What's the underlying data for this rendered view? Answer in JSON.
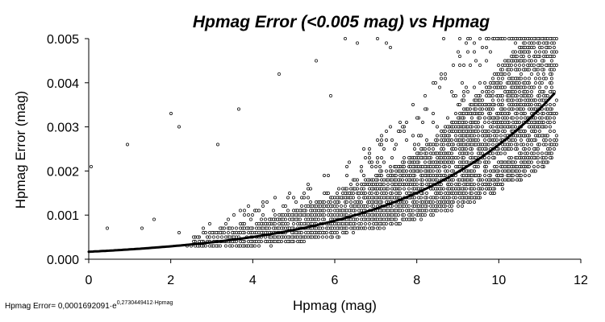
{
  "chart_data": {
    "type": "scatter",
    "title": "Hpmag Error (<0.005 mag) vs Hpmag",
    "xlabel": "Hpmag (mag)",
    "ylabel": "Hpmag Error (mag)",
    "xlim": [
      0,
      12
    ],
    "ylim": [
      0,
      0.005
    ],
    "x_ticks": [
      "0",
      "2",
      "4",
      "6",
      "8",
      "10",
      "12"
    ],
    "y_ticks": [
      "0.000",
      "0.001",
      "0.002",
      "0.003",
      "0.004",
      "0.005"
    ],
    "grid": false,
    "legend": "none",
    "marker": "small open circle",
    "error_quantization": 0.0001,
    "outlier_points": [
      {
        "x": 0.05,
        "y": 0.0021
      },
      {
        "x": 0.45,
        "y": 0.0007
      },
      {
        "x": 0.95,
        "y": 0.0026
      },
      {
        "x": 1.3,
        "y": 0.0007
      },
      {
        "x": 1.6,
        "y": 0.0009
      },
      {
        "x": 2.0,
        "y": 0.0033
      },
      {
        "x": 2.2,
        "y": 0.003
      },
      {
        "x": 2.2,
        "y": 0.0006
      },
      {
        "x": 3.15,
        "y": 0.0026
      },
      {
        "x": 3.65,
        "y": 0.0034
      },
      {
        "x": 4.65,
        "y": 0.0042
      },
      {
        "x": 5.55,
        "y": 0.0045
      },
      {
        "x": 5.9,
        "y": 0.0037
      },
      {
        "x": 6.25,
        "y": 0.005
      },
      {
        "x": 6.55,
        "y": 0.0049
      },
      {
        "x": 7.05,
        "y": 0.005
      },
      {
        "x": 7.25,
        "y": 0.0049
      },
      {
        "x": 7.35,
        "y": 0.0048
      },
      {
        "x": 8.65,
        "y": 0.005
      },
      {
        "x": 9.05,
        "y": 0.005
      },
      {
        "x": 9.6,
        "y": 0.0048
      },
      {
        "x": 10.3,
        "y": 0.0043
      },
      {
        "x": 11.2,
        "y": 0.005
      },
      {
        "x": 11.3,
        "y": 0.0047
      },
      {
        "x": 11.4,
        "y": 0.0047
      }
    ],
    "dense_region": {
      "x_range": [
        2.4,
        11.4
      ],
      "lower_bound_fraction_of_trend": 0.6,
      "upper_bound_fraction_of_trend": 1.65,
      "outer_spread_fraction_of_trend": 2.4
    },
    "trendline": {
      "type": "exponential",
      "a": 0.0001692091,
      "b": 0.2730449412,
      "x_range": [
        0,
        11.35
      ],
      "equation_label": "Hpmag Error= 0,0001692091·e",
      "equation_exponent": "0,2730449412·Hpmag"
    }
  }
}
